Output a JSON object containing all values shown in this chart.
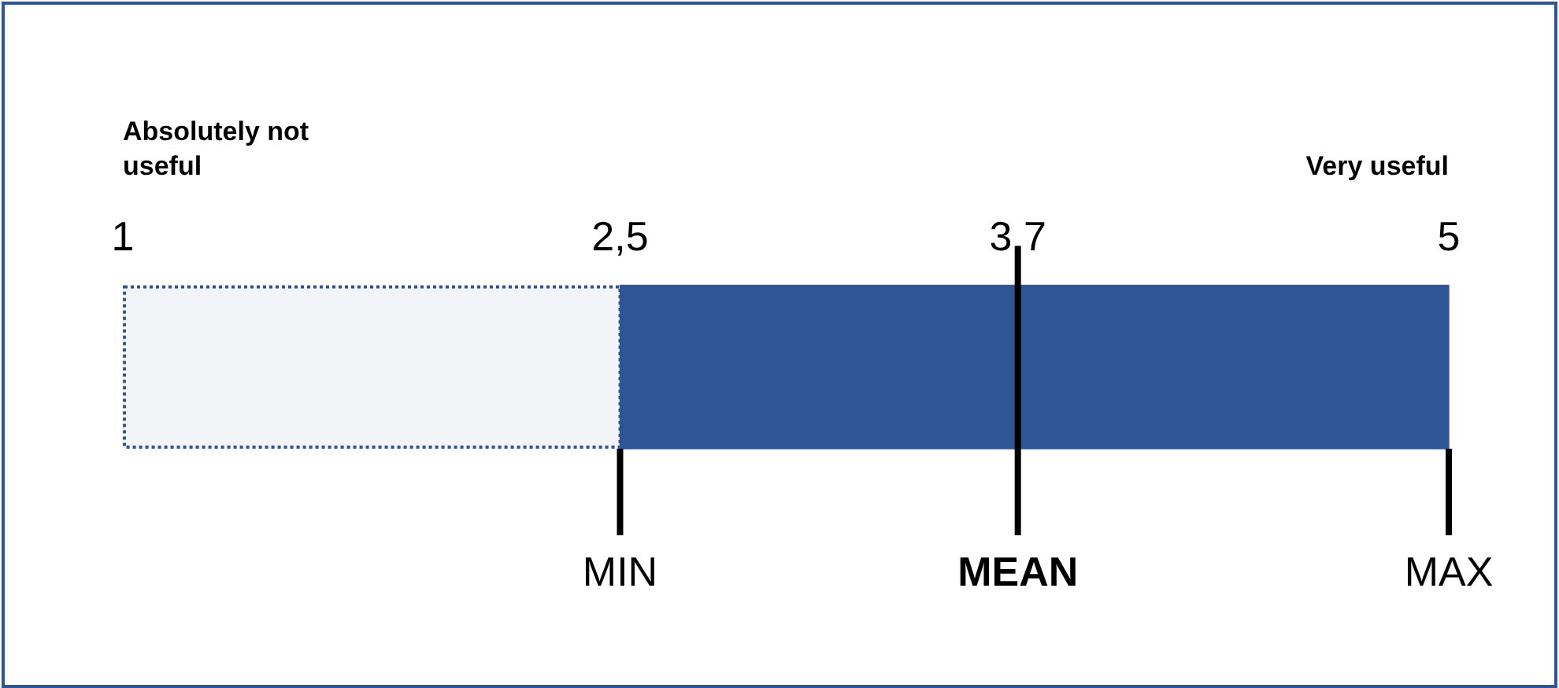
{
  "chart_data": {
    "type": "bar",
    "orientation": "horizontal",
    "categories": [
      null
    ],
    "base": [
      2.5
    ],
    "values": [
      2.5
    ],
    "color": "#2f5597",
    "xlim": [
      1,
      5
    ],
    "xticks": [
      1,
      {
        "value": 2.5,
        "label": "2,5"
      },
      {
        "value": 3.7,
        "label": "3,7"
      },
      5
    ],
    "bands": [
      {
        "axis": "x",
        "from": 1,
        "to": 2.5,
        "color": "#2f5597"
      }
    ],
    "ref_lines": [
      {
        "axis": "x",
        "value": 2.5,
        "label": "MIN"
      },
      {
        "axis": "x",
        "value": 3.7,
        "label": "MEAN"
      },
      {
        "axis": "x",
        "value": 5,
        "label": "MAX"
      }
    ],
    "annotations": [
      "Absolutely not useful",
      "Very useful"
    ],
    "grid": false,
    "legend": false
  }
}
